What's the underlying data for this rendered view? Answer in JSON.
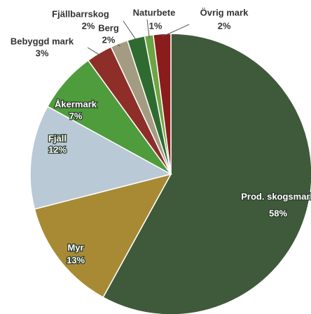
{
  "chart_data": {
    "type": "pie",
    "categories": [
      "Prod. skogsmark",
      "Myr",
      "Fjäll",
      "Åkermark",
      "Bebyggd mark",
      "Berg",
      "Fjällbarrskog",
      "Naturbete",
      "Övrig mark"
    ],
    "values": [
      58,
      13,
      12,
      7,
      3,
      2,
      2,
      1,
      2
    ],
    "value_labels": [
      "58%",
      "13%",
      "12%",
      "7%",
      "3%",
      "2%",
      "2%",
      "1%",
      "2%"
    ],
    "colors": [
      "#3f5a3a",
      "#a88a34",
      "#b9c9d6",
      "#4e9c3c",
      "#8e2e28",
      "#a39c82",
      "#2f6b30",
      "#6ea544",
      "#8a1c1c"
    ]
  }
}
